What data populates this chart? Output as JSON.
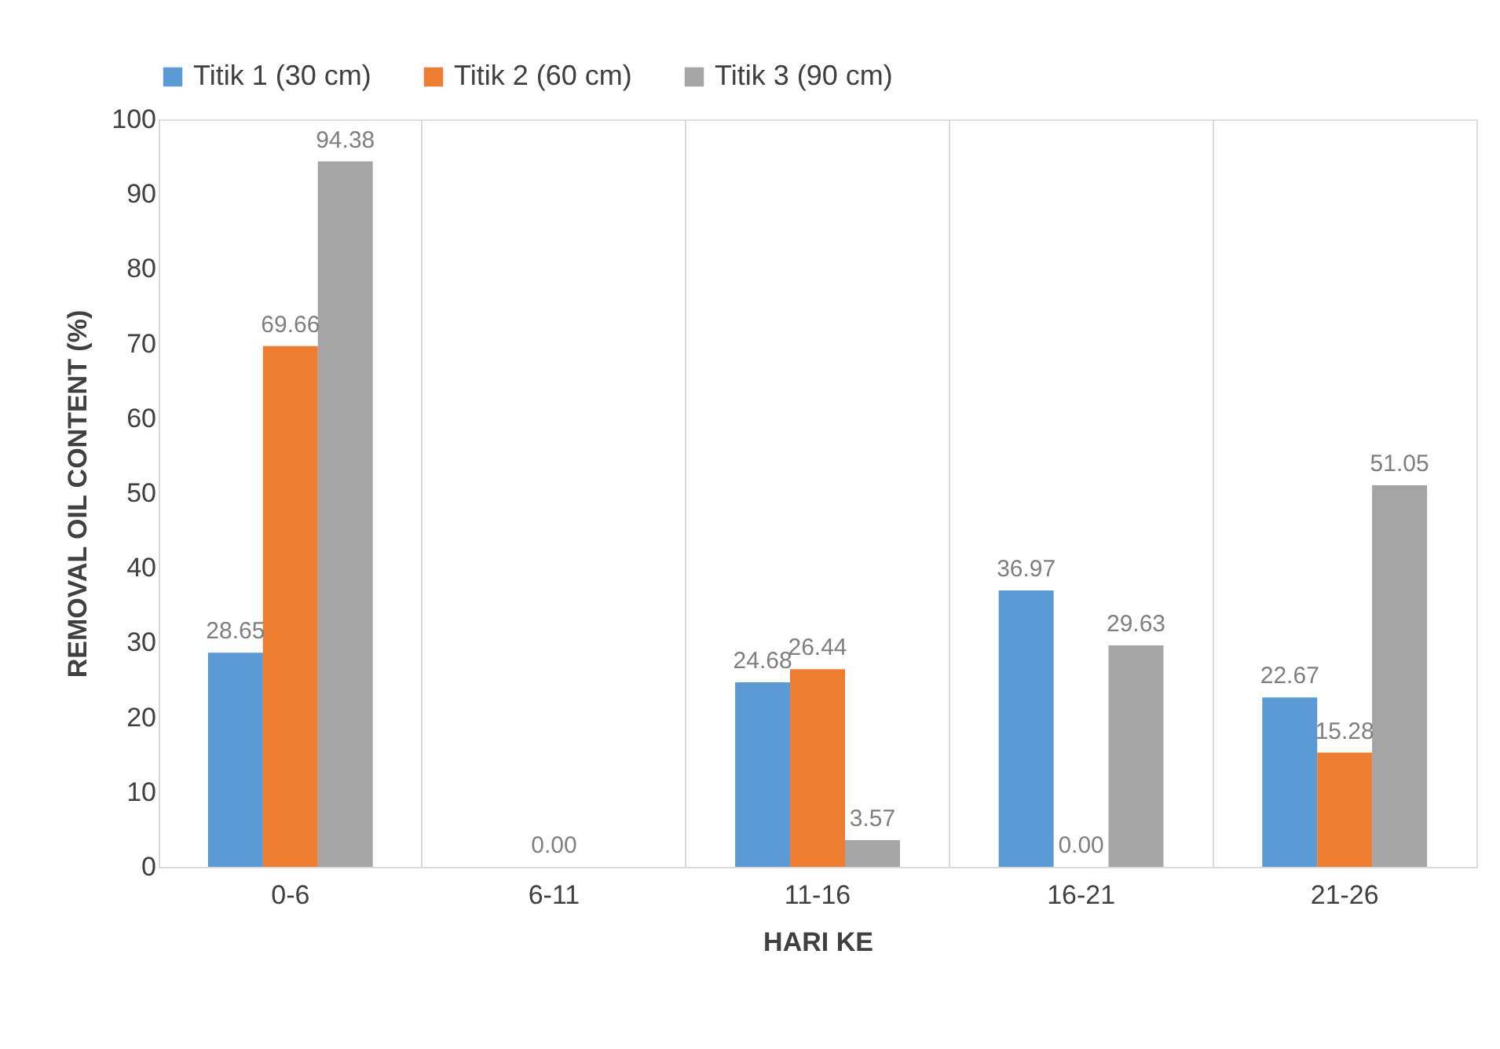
{
  "chart_data": {
    "type": "bar",
    "xlabel": "HARI KE",
    "ylabel": "REMOVAL OIL CONTENT (%)",
    "categories": [
      "0-6",
      "6-11",
      "11-16",
      "16-21",
      "21-26"
    ],
    "series": [
      {
        "name": "Titik 1 (30 cm)",
        "color": "#5b9bd5",
        "values": [
          28.65,
          null,
          24.68,
          36.97,
          22.67
        ],
        "value_labels": [
          "28.65",
          null,
          "24.68",
          "36.97",
          "22.67"
        ]
      },
      {
        "name": "Titik 2 (60 cm)",
        "color": "#ed7d31",
        "values": [
          69.66,
          0,
          26.44,
          0,
          15.28
        ],
        "value_labels": [
          "69.66",
          "0.00",
          "26.44",
          "0.00",
          "15.28"
        ]
      },
      {
        "name": "Titik 3 (90 cm)",
        "color": "#a5a5a5",
        "values": [
          94.38,
          null,
          3.57,
          29.63,
          51.05
        ],
        "value_labels": [
          "94.38",
          null,
          "3.57",
          "29.63",
          "51.05"
        ]
      }
    ],
    "ylim": [
      0,
      100
    ],
    "yticks": [
      0,
      10,
      20,
      30,
      40,
      50,
      60,
      70,
      80,
      90,
      100
    ],
    "grid": "x",
    "legend": "top"
  }
}
